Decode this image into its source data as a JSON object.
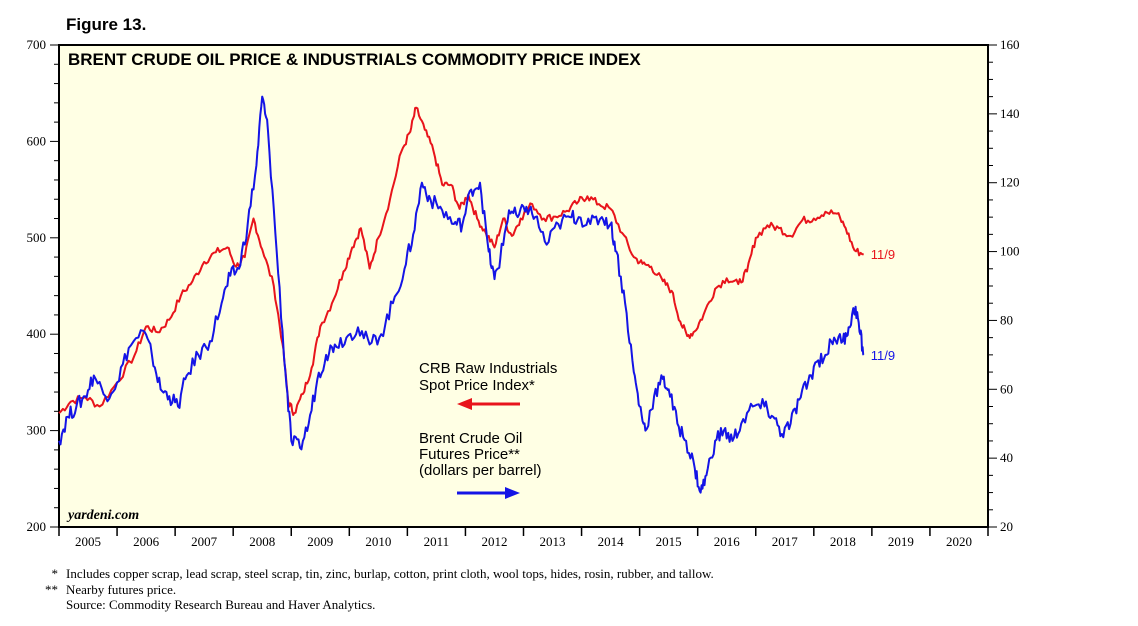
{
  "figure_label": "Figure 13.",
  "source_mark": "yardeni.com",
  "notes": [
    {
      "mark": "*",
      "text": "Includes copper scrap, lead scrap, steel scrap, tin, zinc, burlap, cotton, print cloth, wool tops, hides, rosin, rubber, and tallow."
    },
    {
      "mark": "**",
      "text": "Nearby futures price."
    },
    {
      "mark": "",
      "text": "Source: Commodity Research Bureau and Haver Analytics."
    }
  ],
  "chart_data": {
    "type": "line",
    "title": "BRENT CRUDE OIL PRICE & INDUSTRIALS COMMODITY PRICE INDEX",
    "x_range": [
      2005,
      2021
    ],
    "year_labels": [
      "2005",
      "2006",
      "2007",
      "2008",
      "2009",
      "2010",
      "2011",
      "2012",
      "2013",
      "2014",
      "2015",
      "2016",
      "2017",
      "2018",
      "2019",
      "2020"
    ],
    "left_axis": {
      "range": [
        200,
        700
      ],
      "major_ticks": [
        "200",
        "300",
        "400",
        "500",
        "600",
        "700"
      ]
    },
    "right_axis": {
      "range": [
        20,
        160
      ],
      "major_ticks": [
        "20",
        "40",
        "60",
        "80",
        "100",
        "120",
        "140",
        "160"
      ]
    },
    "grid": false,
    "legend": {
      "position": "center",
      "entries": [
        {
          "lines": [
            "CRB Raw Industrials",
            "Spot Price Index*"
          ],
          "arrow": "left",
          "color": "#e8141b"
        },
        {
          "lines": [
            "Brent Crude Oil",
            "Futures Price**",
            "(dollars per barrel)"
          ],
          "arrow": "right",
          "color": "#1414e6"
        }
      ]
    },
    "series": [
      {
        "name": "CRB Raw Industrials Spot Price Index",
        "axis": "left",
        "color": "#e8141b",
        "end_label": "11/9",
        "points": [
          [
            2005.0,
            318
          ],
          [
            2005.2,
            330
          ],
          [
            2005.45,
            335
          ],
          [
            2005.7,
            325
          ],
          [
            2006.0,
            350
          ],
          [
            2006.3,
            378
          ],
          [
            2006.5,
            408
          ],
          [
            2006.7,
            402
          ],
          [
            2006.9,
            415
          ],
          [
            2007.1,
            440
          ],
          [
            2007.3,
            455
          ],
          [
            2007.5,
            475
          ],
          [
            2007.7,
            485
          ],
          [
            2007.9,
            490
          ],
          [
            2008.05,
            470
          ],
          [
            2008.2,
            480
          ],
          [
            2008.35,
            520
          ],
          [
            2008.5,
            488
          ],
          [
            2008.7,
            450
          ],
          [
            2008.85,
            390
          ],
          [
            2008.95,
            330
          ],
          [
            2009.05,
            318
          ],
          [
            2009.2,
            338
          ],
          [
            2009.35,
            365
          ],
          [
            2009.5,
            408
          ],
          [
            2009.7,
            432
          ],
          [
            2009.9,
            465
          ],
          [
            2010.05,
            490
          ],
          [
            2010.2,
            510
          ],
          [
            2010.35,
            468
          ],
          [
            2010.5,
            500
          ],
          [
            2010.7,
            540
          ],
          [
            2010.9,
            590
          ],
          [
            2011.05,
            610
          ],
          [
            2011.15,
            635
          ],
          [
            2011.3,
            612
          ],
          [
            2011.45,
            590
          ],
          [
            2011.6,
            555
          ],
          [
            2011.75,
            555
          ],
          [
            2011.9,
            530
          ],
          [
            2012.05,
            545
          ],
          [
            2012.2,
            520
          ],
          [
            2012.35,
            505
          ],
          [
            2012.5,
            490
          ],
          [
            2012.65,
            520
          ],
          [
            2012.8,
            502
          ],
          [
            2012.95,
            520
          ],
          [
            2013.15,
            535
          ],
          [
            2013.35,
            520
          ],
          [
            2013.55,
            522
          ],
          [
            2013.75,
            528
          ],
          [
            2013.95,
            538
          ],
          [
            2014.1,
            543
          ],
          [
            2014.3,
            535
          ],
          [
            2014.5,
            530
          ],
          [
            2014.7,
            505
          ],
          [
            2014.9,
            480
          ],
          [
            2015.05,
            473
          ],
          [
            2015.2,
            470
          ],
          [
            2015.4,
            455
          ],
          [
            2015.55,
            445
          ],
          [
            2015.7,
            413
          ],
          [
            2015.82,
            398
          ],
          [
            2015.95,
            403
          ],
          [
            2016.1,
            420
          ],
          [
            2016.3,
            447
          ],
          [
            2016.5,
            458
          ],
          [
            2016.7,
            452
          ],
          [
            2016.85,
            465
          ],
          [
            2017.0,
            500
          ],
          [
            2017.2,
            513
          ],
          [
            2017.4,
            510
          ],
          [
            2017.6,
            502
          ],
          [
            2017.8,
            518
          ],
          [
            2018.0,
            520
          ],
          [
            2018.2,
            527
          ],
          [
            2018.4,
            525
          ],
          [
            2018.55,
            510
          ],
          [
            2018.7,
            487
          ],
          [
            2018.86,
            483
          ]
        ]
      },
      {
        "name": "Brent Crude Oil Futures Price",
        "axis": "right",
        "color": "#1414e6",
        "end_label": "11/9",
        "points": [
          [
            2005.0,
            45
          ],
          [
            2005.15,
            52
          ],
          [
            2005.3,
            55
          ],
          [
            2005.45,
            58
          ],
          [
            2005.6,
            64
          ],
          [
            2005.8,
            58
          ],
          [
            2006.0,
            62
          ],
          [
            2006.2,
            72
          ],
          [
            2006.45,
            77
          ],
          [
            2006.6,
            70
          ],
          [
            2006.75,
            60
          ],
          [
            2006.9,
            58
          ],
          [
            2007.05,
            55
          ],
          [
            2007.2,
            64
          ],
          [
            2007.4,
            70
          ],
          [
            2007.6,
            74
          ],
          [
            2007.8,
            85
          ],
          [
            2007.95,
            93
          ],
          [
            2008.1,
            95
          ],
          [
            2008.25,
            108
          ],
          [
            2008.4,
            125
          ],
          [
            2008.5,
            145
          ],
          [
            2008.6,
            135
          ],
          [
            2008.75,
            100
          ],
          [
            2008.9,
            65
          ],
          [
            2009.0,
            45
          ],
          [
            2009.15,
            43
          ],
          [
            2009.3,
            50
          ],
          [
            2009.45,
            63
          ],
          [
            2009.6,
            70
          ],
          [
            2009.75,
            73
          ],
          [
            2009.95,
            75
          ],
          [
            2010.15,
            78
          ],
          [
            2010.35,
            73
          ],
          [
            2010.55,
            76
          ],
          [
            2010.75,
            85
          ],
          [
            2010.95,
            95
          ],
          [
            2011.1,
            105
          ],
          [
            2011.25,
            120
          ],
          [
            2011.4,
            115
          ],
          [
            2011.6,
            112
          ],
          [
            2011.8,
            108
          ],
          [
            2011.95,
            108
          ],
          [
            2012.1,
            118
          ],
          [
            2012.25,
            120
          ],
          [
            2012.4,
            100
          ],
          [
            2012.5,
            92
          ],
          [
            2012.6,
            98
          ],
          [
            2012.75,
            112
          ],
          [
            2012.9,
            110
          ],
          [
            2013.05,
            113
          ],
          [
            2013.2,
            110
          ],
          [
            2013.4,
            102
          ],
          [
            2013.6,
            108
          ],
          [
            2013.8,
            110
          ],
          [
            2013.95,
            110
          ],
          [
            2014.15,
            108
          ],
          [
            2014.35,
            110
          ],
          [
            2014.5,
            108
          ],
          [
            2014.6,
            100
          ],
          [
            2014.75,
            85
          ],
          [
            2014.9,
            65
          ],
          [
            2015.0,
            55
          ],
          [
            2015.1,
            48
          ],
          [
            2015.25,
            58
          ],
          [
            2015.4,
            63
          ],
          [
            2015.5,
            60
          ],
          [
            2015.65,
            50
          ],
          [
            2015.8,
            45
          ],
          [
            2015.95,
            37
          ],
          [
            2016.05,
            30
          ],
          [
            2016.15,
            35
          ],
          [
            2016.3,
            45
          ],
          [
            2016.45,
            48
          ],
          [
            2016.6,
            45
          ],
          [
            2016.75,
            50
          ],
          [
            2016.95,
            55
          ],
          [
            2017.15,
            55
          ],
          [
            2017.3,
            52
          ],
          [
            2017.45,
            47
          ],
          [
            2017.6,
            50
          ],
          [
            2017.75,
            57
          ],
          [
            2017.9,
            62
          ],
          [
            2018.05,
            68
          ],
          [
            2018.2,
            70
          ],
          [
            2018.35,
            75
          ],
          [
            2018.5,
            74
          ],
          [
            2018.6,
            78
          ],
          [
            2018.72,
            84
          ],
          [
            2018.8,
            76
          ],
          [
            2018.86,
            70
          ]
        ]
      }
    ]
  }
}
